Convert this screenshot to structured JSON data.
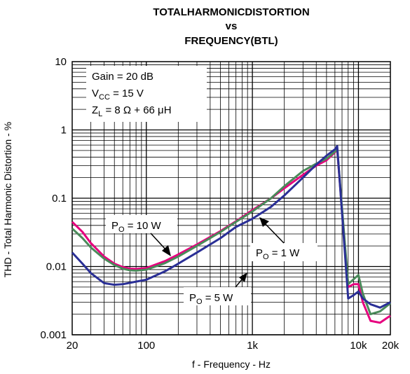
{
  "chart_data": {
    "type": "line",
    "title_lines": [
      "TOTALHARMONICDISTORTION",
      "vs",
      "FREQUENCY(BTL)"
    ],
    "xlabel": "f - Frequency - Hz",
    "ylabel": "THD - Total Harmonic Distortion - %",
    "x_scale": "log",
    "y_scale": "log",
    "xlim": [
      20,
      20000
    ],
    "ylim": [
      0.001,
      10
    ],
    "grid": true,
    "x_ticks": [
      {
        "value": 20,
        "label": "20"
      },
      {
        "value": 100,
        "label": "100"
      },
      {
        "value": 1000,
        "label": "1k"
      },
      {
        "value": 10000,
        "label": "10k"
      },
      {
        "value": 20000,
        "label": "20k"
      }
    ],
    "y_ticks": [
      {
        "value": 0.001,
        "label": "0.001"
      },
      {
        "value": 0.01,
        "label": "0.01"
      },
      {
        "value": 0.1,
        "label": "0.1"
      },
      {
        "value": 1,
        "label": "1"
      },
      {
        "value": 10,
        "label": "10"
      }
    ],
    "conditions": {
      "gain": {
        "main": "Gain = 20 dB"
      },
      "vcc": {
        "prefix": "V",
        "sub": "CC",
        "suffix": " = 15 V"
      },
      "zl": {
        "prefix": "Z",
        "sub": "L",
        "suffix": " = 8 Ω + 66 μH"
      }
    },
    "series": [
      {
        "name": "PO = 10 W",
        "label_prefix": "P",
        "label_sub": "O",
        "label_suffix": " = 10 W",
        "color": "#e6007e",
        "points": [
          [
            20,
            0.045
          ],
          [
            25,
            0.032
          ],
          [
            30,
            0.022
          ],
          [
            40,
            0.014
          ],
          [
            50,
            0.011
          ],
          [
            60,
            0.0098
          ],
          [
            70,
            0.0093
          ],
          [
            80,
            0.0092
          ],
          [
            100,
            0.0095
          ],
          [
            150,
            0.012
          ],
          [
            200,
            0.015
          ],
          [
            300,
            0.021
          ],
          [
            500,
            0.033
          ],
          [
            700,
            0.046
          ],
          [
            1000,
            0.067
          ],
          [
            1500,
            0.1
          ],
          [
            2000,
            0.14
          ],
          [
            3000,
            0.22
          ],
          [
            4000,
            0.3
          ],
          [
            5000,
            0.36
          ],
          [
            6000,
            0.47
          ],
          [
            6300,
            0.52
          ],
          [
            8000,
            0.005
          ],
          [
            9000,
            0.0055
          ],
          [
            10000,
            0.0055
          ],
          [
            11000,
            0.003
          ],
          [
            13000,
            0.0016
          ],
          [
            16000,
            0.0015
          ],
          [
            20000,
            0.0019
          ]
        ]
      },
      {
        "name": "PO = 5 W",
        "label_prefix": "P",
        "label_sub": "O",
        "label_suffix": " = 5 W",
        "color": "#4a8a5a",
        "points": [
          [
            20,
            0.036
          ],
          [
            25,
            0.026
          ],
          [
            30,
            0.019
          ],
          [
            40,
            0.013
          ],
          [
            50,
            0.0105
          ],
          [
            60,
            0.0093
          ],
          [
            70,
            0.0088
          ],
          [
            80,
            0.0087
          ],
          [
            100,
            0.009
          ],
          [
            150,
            0.0112
          ],
          [
            200,
            0.014
          ],
          [
            300,
            0.02
          ],
          [
            500,
            0.032
          ],
          [
            700,
            0.045
          ],
          [
            1000,
            0.064
          ],
          [
            1500,
            0.1
          ],
          [
            2000,
            0.15
          ],
          [
            3000,
            0.25
          ],
          [
            4000,
            0.32
          ],
          [
            5000,
            0.38
          ],
          [
            6000,
            0.48
          ],
          [
            6300,
            0.54
          ],
          [
            8000,
            0.0055
          ],
          [
            9000,
            0.0065
          ],
          [
            10000,
            0.0075
          ],
          [
            11000,
            0.004
          ],
          [
            13000,
            0.002
          ],
          [
            16000,
            0.0022
          ],
          [
            20000,
            0.0029
          ]
        ]
      },
      {
        "name": "PO = 1 W",
        "label_prefix": "P",
        "label_sub": "O",
        "label_suffix": " = 1 W",
        "color": "#2a2f96",
        "points": [
          [
            20,
            0.016
          ],
          [
            25,
            0.011
          ],
          [
            30,
            0.008
          ],
          [
            40,
            0.0057
          ],
          [
            50,
            0.0054
          ],
          [
            60,
            0.0055
          ],
          [
            80,
            0.006
          ],
          [
            100,
            0.0064
          ],
          [
            150,
            0.0085
          ],
          [
            200,
            0.011
          ],
          [
            300,
            0.016
          ],
          [
            500,
            0.026
          ],
          [
            700,
            0.038
          ],
          [
            1000,
            0.05
          ],
          [
            1500,
            0.075
          ],
          [
            2000,
            0.11
          ],
          [
            3000,
            0.2
          ],
          [
            4000,
            0.31
          ],
          [
            5000,
            0.42
          ],
          [
            6000,
            0.52
          ],
          [
            6300,
            0.58
          ],
          [
            8000,
            0.0034
          ],
          [
            9000,
            0.0038
          ],
          [
            10000,
            0.0043
          ],
          [
            11000,
            0.0034
          ],
          [
            13000,
            0.0028
          ],
          [
            16000,
            0.0025
          ],
          [
            20000,
            0.003
          ]
        ]
      }
    ]
  }
}
